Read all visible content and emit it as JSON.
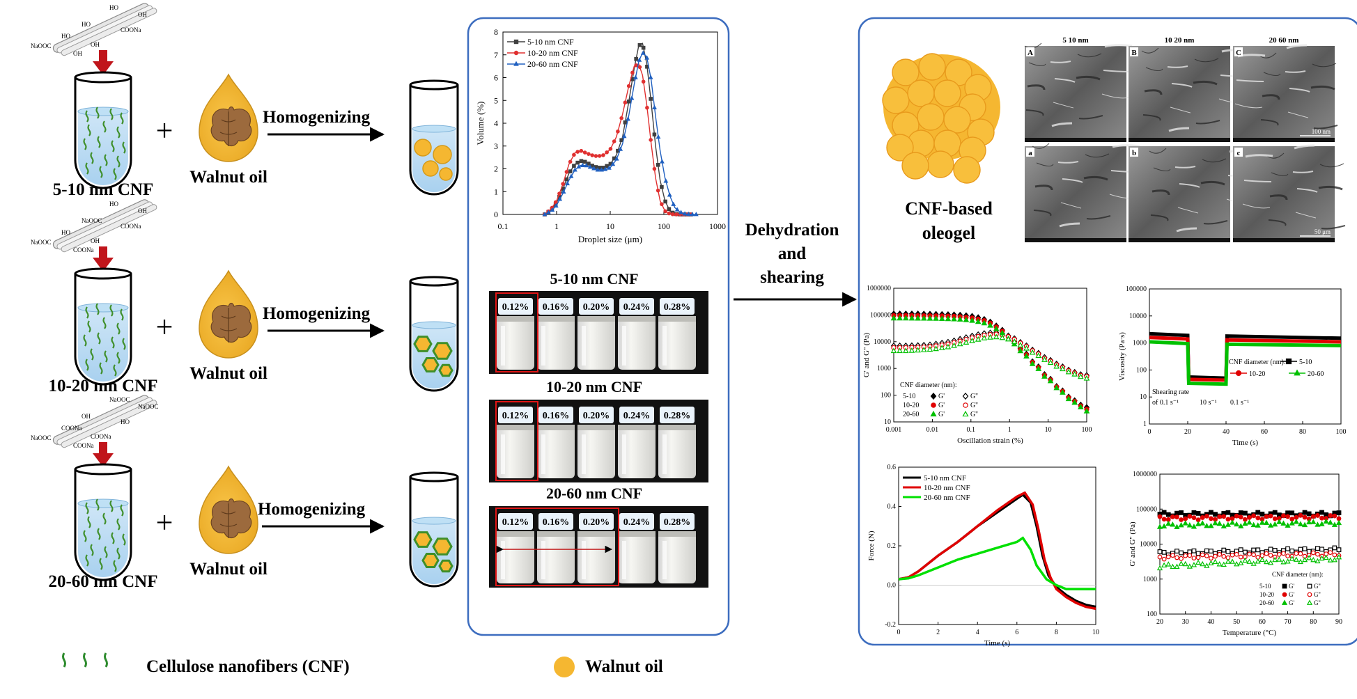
{
  "left_column": {
    "rows": [
      {
        "label": "5-10 nm CNF",
        "oil_label": "Walnut oil",
        "arrow_label": "Homogenizing",
        "chem": [
          "HO",
          "OH",
          "HO",
          "COONa",
          "HO",
          "NaOOC",
          "OH",
          "OH"
        ]
      },
      {
        "label": "10-20 nm CNF",
        "oil_label": "Walnut oil",
        "arrow_label": "Homogenizing",
        "chem": [
          "HO",
          "OH",
          "NaOOC",
          "COONa",
          "HO",
          "NaOOC",
          "OH",
          "COONa"
        ]
      },
      {
        "label": "20-60 nm CNF",
        "oil_label": "Walnut oil",
        "arrow_label": "Homogenizing",
        "chem": [
          "NaOOC",
          "NaOOC",
          "OH",
          "HO",
          "COONa",
          "NaOOC",
          "COONa",
          "COONa"
        ]
      }
    ],
    "plus_sign": "+"
  },
  "legend": {
    "cnf_label": "Cellulose nanofibers (CNF)",
    "oil_label": "Walnut oil"
  },
  "center_panel": {
    "chart_data": {
      "type": "line",
      "xlabel": "Droplet size (μm)",
      "ylabel": "Volume (%)",
      "x_scale": "log",
      "xlim": [
        0.1,
        1000
      ],
      "ylim": [
        0,
        8
      ],
      "x_ticks": [
        "0.1",
        "1",
        "10",
        "100",
        "1000"
      ],
      "y_ticks": [
        "0",
        "1",
        "2",
        "3",
        "4",
        "5",
        "6",
        "7",
        "8"
      ],
      "series": [
        {
          "name": "5-10 nm CNF",
          "color": "#404040",
          "x": [
            0.6,
            0.8,
            1,
            1.3,
            1.7,
            2.2,
            2.8,
            3.5,
            4.5,
            5.8,
            7.5,
            10,
            13,
            17,
            22,
            28,
            34,
            40,
            48,
            58,
            70,
            85,
            105,
            130,
            160,
            200,
            250,
            320
          ],
          "y": [
            0,
            0.2,
            0.5,
            1.1,
            1.8,
            2.2,
            2.35,
            2.3,
            2.15,
            2.05,
            2.05,
            2.2,
            2.6,
            3.4,
            4.9,
            6.4,
            7.4,
            7.5,
            6.6,
            4.9,
            3.0,
            1.5,
            0.6,
            0.15,
            0.02,
            0,
            0,
            0
          ]
        },
        {
          "name": "10-20 nm CNF",
          "color": "#e03030",
          "x": [
            0.6,
            0.8,
            1,
            1.3,
            1.7,
            2.2,
            2.8,
            3.5,
            4.5,
            5.8,
            7.5,
            10,
            13,
            17,
            22,
            28,
            34,
            40,
            48,
            58,
            70,
            85,
            105,
            130,
            160,
            200,
            250,
            320
          ],
          "y": [
            0,
            0.25,
            0.6,
            1.3,
            2.2,
            2.7,
            2.8,
            2.7,
            2.6,
            2.55,
            2.6,
            2.85,
            3.4,
            4.4,
            5.6,
            6.5,
            6.6,
            6.1,
            4.8,
            3.1,
            1.6,
            0.6,
            0.15,
            0.02,
            0,
            0,
            0,
            0
          ]
        },
        {
          "name": "20-60 nm CNF",
          "color": "#2060c0",
          "x": [
            0.6,
            0.8,
            1,
            1.3,
            1.7,
            2.2,
            2.8,
            3.5,
            4.5,
            5.8,
            7.5,
            10,
            13,
            17,
            22,
            28,
            34,
            40,
            48,
            58,
            70,
            85,
            105,
            130,
            160,
            200,
            250,
            320,
            400
          ],
          "y": [
            0,
            0.15,
            0.4,
            0.9,
            1.5,
            1.95,
            2.15,
            2.15,
            2.05,
            1.95,
            1.95,
            2.05,
            2.4,
            3.1,
            4.3,
            5.7,
            6.7,
            7.1,
            6.9,
            5.9,
            4.3,
            2.8,
            1.6,
            0.8,
            0.3,
            0.1,
            0.02,
            0,
            0
          ]
        }
      ]
    },
    "photo_groups": [
      {
        "title": "5-10 nm CNF",
        "jars": [
          "0.12%",
          "0.16%",
          "0.20%",
          "0.24%",
          "0.28%"
        ]
      },
      {
        "title": "10-20 nm CNF",
        "jars": [
          "0.12%",
          "0.16%",
          "0.20%",
          "0.24%",
          "0.28%"
        ]
      },
      {
        "title": "20-60 nm CNF",
        "jars": [
          "0.12%",
          "0.16%",
          "0.20%",
          "0.24%",
          "0.28%"
        ]
      }
    ]
  },
  "middle_arrow": {
    "lines": [
      "Dehydration",
      "and",
      "shearing"
    ]
  },
  "right_panel": {
    "oleogel_label": [
      "CNF-based",
      "oleogel"
    ],
    "sem": {
      "columns": [
        "5 10 nm",
        "10 20 nm",
        "20 60 nm"
      ],
      "top_letters": [
        "A",
        "B",
        "C"
      ],
      "bottom_letters": [
        "a",
        "b",
        "c"
      ],
      "scale_top": "100 nm",
      "scale_bottom": "50 μm"
    },
    "chart_data": [
      {
        "type": "scatter",
        "id": "strain-sweep",
        "xlabel": "Oscillation strain (%)",
        "ylabel": "G' and G'' (Pa)",
        "x_scale": "log",
        "y_scale": "log",
        "x_ticks": [
          "0.001",
          "0.01",
          "0.1",
          "1",
          "10",
          "100"
        ],
        "y_ticks": [
          "10",
          "100",
          "1000",
          "10000",
          "100000",
          "1000000"
        ],
        "legend_title": "CNF diameter (nm):",
        "legend": [
          [
            "5-10",
            "G'",
            "G''"
          ],
          [
            "10-20",
            "G'",
            "G''"
          ],
          [
            "20-60",
            "G'",
            "G''"
          ]
        ],
        "series": [
          {
            "name": "5-10 G'",
            "color": "#000000",
            "filled": true,
            "x": [
              0.001,
              0.002,
              0.004,
              0.008,
              0.015,
              0.03,
              0.06,
              0.12,
              0.25,
              0.5,
              1,
              2,
              4,
              8,
              16,
              32,
              64,
              100
            ],
            "y": [
              110000,
              110000,
              110000,
              108000,
              106000,
              103000,
              98000,
              88000,
              65000,
              35000,
              14000,
              5000,
              1700,
              600,
              220,
              90,
              45,
              35
            ]
          },
          {
            "name": "5-10 G''",
            "color": "#000000",
            "filled": false,
            "x": [
              0.001,
              0.002,
              0.004,
              0.008,
              0.015,
              0.03,
              0.06,
              0.12,
              0.25,
              0.5,
              1,
              2,
              4,
              8,
              16,
              32,
              64,
              100
            ],
            "y": [
              7000,
              7000,
              7200,
              7500,
              8500,
              10000,
              13000,
              17000,
              21000,
              22000,
              16000,
              9000,
              4800,
              2600,
              1500,
              900,
              600,
              550
            ]
          },
          {
            "name": "10-20 G'",
            "color": "#e00000",
            "filled": true,
            "x": [
              0.001,
              0.002,
              0.004,
              0.008,
              0.015,
              0.03,
              0.06,
              0.12,
              0.25,
              0.5,
              1,
              2,
              4,
              8,
              16,
              32,
              64,
              100
            ],
            "y": [
              95000,
              95000,
              94000,
              93000,
              92000,
              90000,
              85000,
              76000,
              58000,
              32000,
              13000,
              4600,
              1600,
              560,
              210,
              85,
              42,
              30
            ]
          },
          {
            "name": "10-20 G''",
            "color": "#e00000",
            "filled": false,
            "x": [
              0.001,
              0.002,
              0.004,
              0.008,
              0.015,
              0.03,
              0.06,
              0.12,
              0.25,
              0.5,
              1,
              2,
              4,
              8,
              16,
              32,
              64,
              100
            ],
            "y": [
              6000,
              6000,
              6200,
              6500,
              7200,
              8500,
              11000,
              14500,
              18000,
              19500,
              15000,
              8500,
              4500,
              2400,
              1400,
              850,
              560,
              500
            ]
          },
          {
            "name": "20-60 G'",
            "color": "#00c000",
            "filled": true,
            "x": [
              0.001,
              0.002,
              0.004,
              0.008,
              0.015,
              0.03,
              0.06,
              0.12,
              0.25,
              0.5,
              1,
              2,
              4,
              8,
              16,
              32,
              64,
              100
            ],
            "y": [
              75000,
              75000,
              74000,
              73000,
              72000,
              70000,
              67000,
              60000,
              47000,
              27000,
              11000,
              4000,
              1400,
              500,
              190,
              75,
              38,
              25
            ]
          },
          {
            "name": "20-60 G''",
            "color": "#00c000",
            "filled": false,
            "x": [
              0.001,
              0.002,
              0.004,
              0.008,
              0.015,
              0.03,
              0.06,
              0.12,
              0.25,
              0.5,
              1,
              2,
              4,
              8,
              16,
              32,
              64,
              100
            ],
            "y": [
              4500,
              4500,
              4700,
              5000,
              5500,
              6500,
              8500,
              11000,
              14000,
              15000,
              12000,
              7000,
              3800,
              2100,
              1200,
              750,
              500,
              420
            ]
          }
        ]
      },
      {
        "type": "line",
        "id": "viscosity",
        "xlabel": "Time (s)",
        "ylabel": "Viscosity (Pa·s)",
        "y_scale": "log",
        "xlim": [
          0,
          100
        ],
        "x_ticks": [
          "0",
          "20",
          "40",
          "60",
          "80",
          "100"
        ],
        "y_ticks": [
          "1",
          "10",
          "100",
          "1000",
          "10000",
          "100000"
        ],
        "legend_title": "CNF diameter (nm):",
        "legend": [
          "5-10",
          "10-20",
          "20-60"
        ],
        "annotations": [
          "Shearing rate",
          "of 0.1 s⁻¹",
          "10 s⁻¹",
          "0.1 s⁻¹"
        ],
        "series": [
          {
            "name": "5-10",
            "color": "#000000",
            "x": [
              0,
              20,
              20.5,
              40,
              40.5,
              100
            ],
            "y": [
              2200,
              1900,
              55,
              50,
              1800,
              1500
            ]
          },
          {
            "name": "10-20",
            "color": "#e00000",
            "x": [
              0,
              20,
              20.5,
              40,
              40.5,
              100
            ],
            "y": [
              1600,
              1400,
              45,
              42,
              1300,
              1100
            ]
          },
          {
            "name": "20-60",
            "color": "#00c000",
            "x": [
              0,
              20,
              20.5,
              40,
              40.5,
              100
            ],
            "y": [
              1100,
              950,
              32,
              30,
              900,
              800
            ]
          }
        ]
      },
      {
        "type": "line",
        "id": "force",
        "xlabel": "Time (s)",
        "ylabel": "Force (N)",
        "xlim": [
          0,
          10
        ],
        "ylim": [
          -0.2,
          0.6
        ],
        "x_ticks": [
          "0",
          "2",
          "4",
          "6",
          "8",
          "10"
        ],
        "y_ticks": [
          "-0.2",
          "0.0",
          "0.2",
          "0.4",
          "0.6"
        ],
        "series": [
          {
            "name": "5-10 nm CNF",
            "color": "#000000",
            "x": [
              0,
              0.5,
              1,
              2,
              3,
              4,
              5,
              6,
              6.3,
              6.7,
              7,
              7.3,
              7.6,
              8,
              8.5,
              9,
              9.5,
              10
            ],
            "y": [
              0.03,
              0.04,
              0.07,
              0.15,
              0.22,
              0.3,
              0.37,
              0.44,
              0.46,
              0.42,
              0.3,
              0.15,
              0.05,
              -0.01,
              -0.05,
              -0.08,
              -0.1,
              -0.11
            ]
          },
          {
            "name": "10-20 nm CNF",
            "color": "#e00000",
            "x": [
              0,
              0.5,
              1,
              2,
              3,
              4,
              5,
              6,
              6.4,
              6.8,
              7.1,
              7.4,
              7.7,
              8,
              8.5,
              9,
              9.5,
              10
            ],
            "y": [
              0.03,
              0.04,
              0.07,
              0.15,
              0.22,
              0.3,
              0.38,
              0.45,
              0.47,
              0.41,
              0.28,
              0.13,
              0.04,
              -0.02,
              -0.06,
              -0.09,
              -0.11,
              -0.12
            ]
          },
          {
            "name": "20-60 nm CNF",
            "color": "#00e000",
            "x": [
              0,
              0.5,
              1,
              2,
              3,
              4,
              5,
              6,
              6.3,
              6.7,
              7,
              7.5,
              8,
              8.5,
              9,
              9.5,
              10
            ],
            "y": [
              0.03,
              0.035,
              0.05,
              0.09,
              0.13,
              0.16,
              0.19,
              0.22,
              0.24,
              0.18,
              0.1,
              0.03,
              0.0,
              -0.02,
              -0.02,
              -0.02,
              -0.02
            ]
          }
        ]
      },
      {
        "type": "scatter",
        "id": "temperature-sweep",
        "xlabel": "Temperature (°C)",
        "ylabel": "G' and G'' (Pa)",
        "y_scale": "log",
        "xlim": [
          20,
          90
        ],
        "x_ticks": [
          "20",
          "30",
          "40",
          "50",
          "60",
          "70",
          "80",
          "90"
        ],
        "y_ticks": [
          "100",
          "1000",
          "10000",
          "100000",
          "1000000"
        ],
        "legend_title": "CNF diameter (nm):",
        "legend": [
          [
            "5-10",
            "G'",
            "G''"
          ],
          [
            "10-20",
            "G'",
            "G''"
          ],
          [
            "20-60",
            "G'",
            "G''"
          ]
        ],
        "series": [
          {
            "name": "5-10 G'",
            "color": "#000000",
            "filled": true,
            "x": [
              20,
              90
            ],
            "y": [
              72000,
              72000
            ]
          },
          {
            "name": "5-10 G''",
            "color": "#000000",
            "filled": false,
            "x": [
              20,
              90
            ],
            "y": [
              5500,
              7000
            ]
          },
          {
            "name": "10-20 G'",
            "color": "#e00000",
            "filled": true,
            "x": [
              20,
              90
            ],
            "y": [
              55000,
              60000
            ]
          },
          {
            "name": "10-20 G''",
            "color": "#e00000",
            "filled": false,
            "x": [
              20,
              90
            ],
            "y": [
              4200,
              5200
            ]
          },
          {
            "name": "20-60 G'",
            "color": "#00c000",
            "filled": true,
            "x": [
              20,
              90
            ],
            "y": [
              34000,
              40000
            ]
          },
          {
            "name": "20-60 G''",
            "color": "#00c000",
            "filled": false,
            "x": [
              20,
              90
            ],
            "y": [
              2300,
              3800
            ]
          }
        ]
      }
    ]
  }
}
